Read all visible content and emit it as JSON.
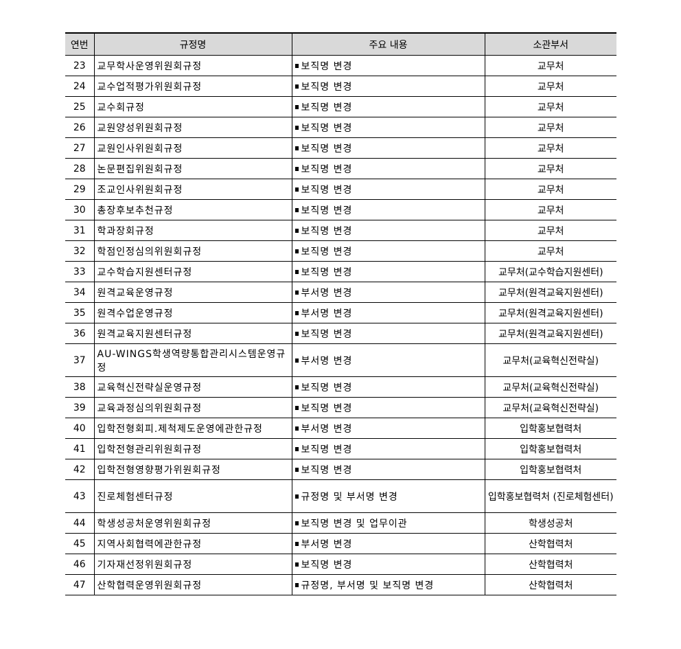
{
  "headers": [
    "연번",
    "규정명",
    "주요 내용",
    "소관부서"
  ],
  "rows": [
    {
      "no": "23",
      "name": "교무학사운영위원회규정",
      "content": "보직명 변경",
      "dept": "교무처"
    },
    {
      "no": "24",
      "name": "교수업적평가위원회규정",
      "content": "보직명 변경",
      "dept": "교무처"
    },
    {
      "no": "25",
      "name": "교수회규정",
      "content": "보직명 변경",
      "dept": "교무처"
    },
    {
      "no": "26",
      "name": "교원양성위원회규정",
      "content": "보직명 변경",
      "dept": "교무처"
    },
    {
      "no": "27",
      "name": "교원인사위원회규정",
      "content": "보직명 변경",
      "dept": "교무처"
    },
    {
      "no": "28",
      "name": "논문편집위원회규정",
      "content": "보직명 변경",
      "dept": "교무처"
    },
    {
      "no": "29",
      "name": "조교인사위원회규정",
      "content": "보직명 변경",
      "dept": "교무처"
    },
    {
      "no": "30",
      "name": "총장후보추천규정",
      "content": "보직명 변경",
      "dept": "교무처"
    },
    {
      "no": "31",
      "name": "학과장회규정",
      "content": "보직명 변경",
      "dept": "교무처"
    },
    {
      "no": "32",
      "name": "학점인정심의위원회규정",
      "content": "보직명 변경",
      "dept": "교무처"
    },
    {
      "no": "33",
      "name": "교수학습지원센터규정",
      "content": "보직명 변경",
      "dept": "교무처(교수학습지원센터)"
    },
    {
      "no": "34",
      "name": "원격교육운영규정",
      "content": "부서명 변경",
      "dept": "교무처(원격교육지원센터)"
    },
    {
      "no": "35",
      "name": "원격수업운영규정",
      "content": "부서명 변경",
      "dept": "교무처(원격교육지원센터)"
    },
    {
      "no": "36",
      "name": "원격교육지원센터규정",
      "content": "보직명 변경",
      "dept": "교무처(원격교육지원센터)"
    },
    {
      "no": "37",
      "name": "AU-WINGS학생역량통합관리시스템운영규정",
      "content": "부서명 변경",
      "dept": "교무처(교육혁신전략실)"
    },
    {
      "no": "38",
      "name": "교육혁신전략실운영규정",
      "content": "보직명 변경",
      "dept": "교무처(교육혁신전략실)"
    },
    {
      "no": "39",
      "name": "교육과정심의위원회규정",
      "content": "보직명 변경",
      "dept": "교무처(교육혁신전략실)"
    },
    {
      "no": "40",
      "name": "입학전형회피.제척제도운영에관한규정",
      "content": "부서명 변경",
      "dept": "입학홍보협력처"
    },
    {
      "no": "41",
      "name": "입학전형관리위원회규정",
      "content": "보직명 변경",
      "dept": "입학홍보협력처"
    },
    {
      "no": "42",
      "name": "입학전형영향평가위원회규정",
      "content": "보직명 변경",
      "dept": "입학홍보협력처"
    },
    {
      "no": "43",
      "name": "진로체험센터규정",
      "content": "규정명 및 부서명 변경",
      "dept": "입학홍보협력처 (진로체험센터)"
    },
    {
      "no": "44",
      "name": "학생성공처운영위원회규정",
      "content": "보직명 변경 및 업무이관",
      "dept": "학생성공처"
    },
    {
      "no": "45",
      "name": "지역사회협력에관한규정",
      "content": "부서명 변경",
      "dept": "산학협력처"
    },
    {
      "no": "46",
      "name": "기자재선정위원회규정",
      "content": "보직명 변경",
      "dept": "산학협력처"
    },
    {
      "no": "47",
      "name": "산학협력운영위원회규정",
      "content": "규정명, 부서명 및 보직명 변경",
      "dept": "산학협력처"
    }
  ]
}
